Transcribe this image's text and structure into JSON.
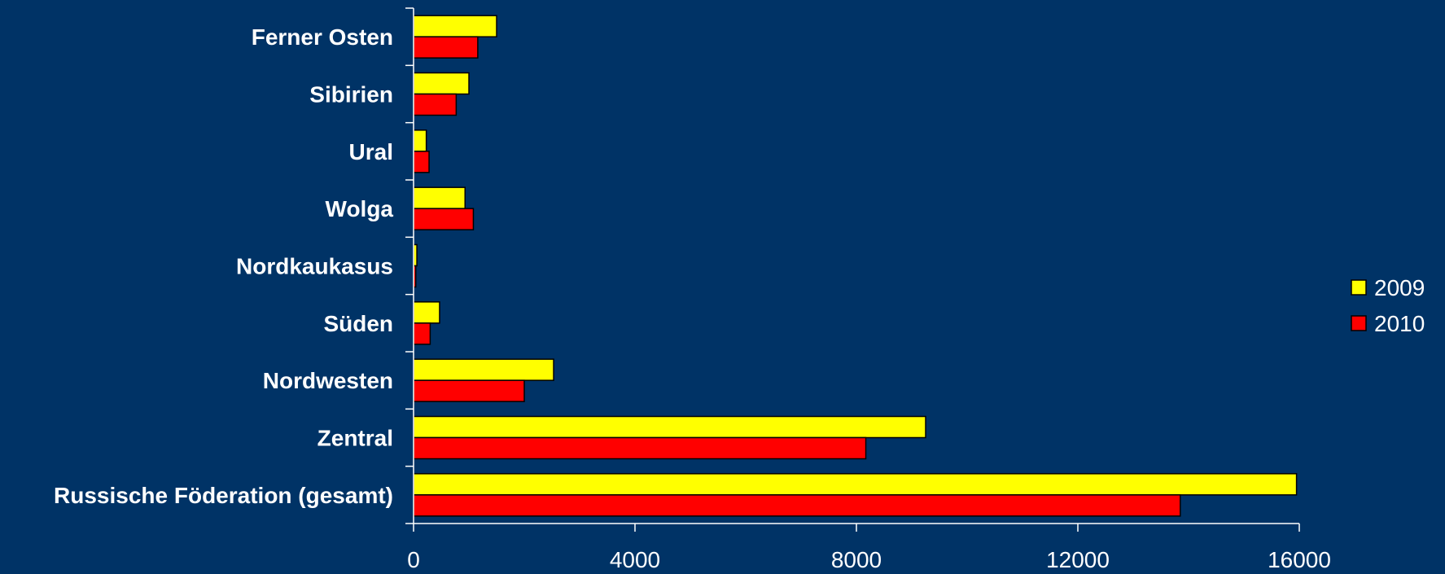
{
  "chart_data": {
    "type": "bar",
    "orientation": "horizontal",
    "categories": [
      "Ferner Osten",
      "Sibirien",
      "Ural",
      "Wolga",
      "Nordkaukasus",
      "Süden",
      "Nordwesten",
      "Zentral",
      "Russische Föderation (gesamt)"
    ],
    "series": [
      {
        "name": "2009",
        "color": "#ffff00",
        "values": [
          1500,
          1000,
          230,
          930,
          60,
          470,
          2530,
          9250,
          15950
        ]
      },
      {
        "name": "2010",
        "color": "#ff0000",
        "values": [
          1160,
          770,
          280,
          1080,
          40,
          300,
          2000,
          8170,
          13850
        ]
      }
    ],
    "xlim": [
      0,
      16000
    ],
    "xticks": [
      "0",
      "4000",
      "8000",
      "12000",
      "16000"
    ],
    "grid": false,
    "legend_position": "right",
    "background": "#003366",
    "axis_color": "#ffffff",
    "bar_outline": "#000000"
  }
}
